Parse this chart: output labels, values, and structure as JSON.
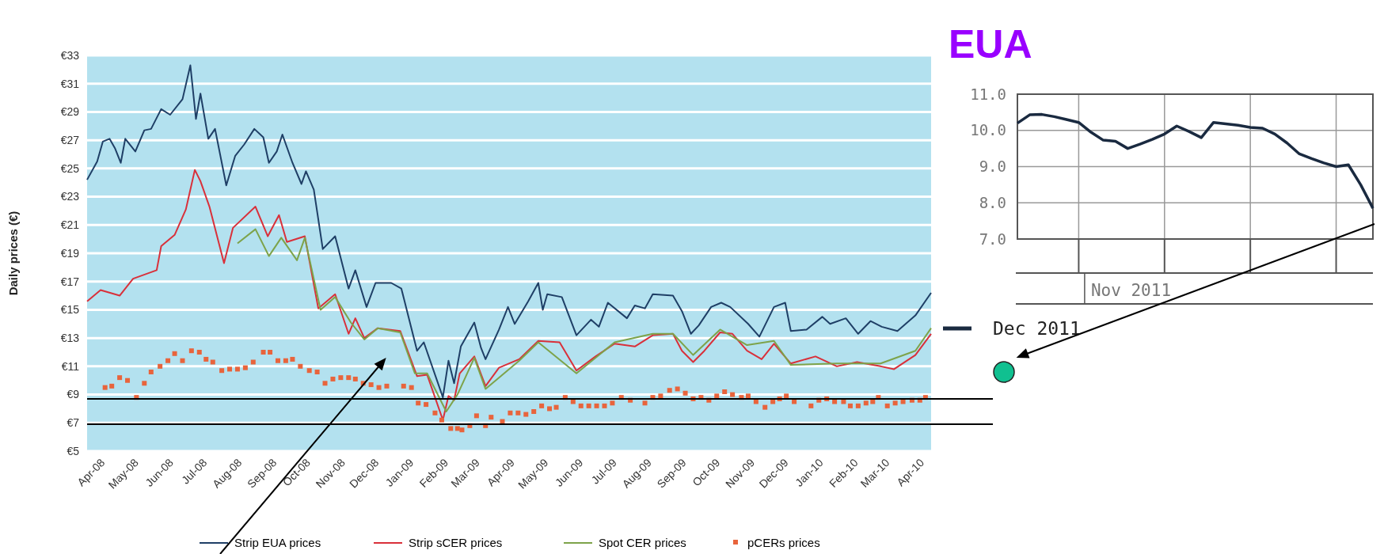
{
  "chart_data": [
    {
      "type": "line",
      "ylabel": "Daily prices (€)",
      "xlim": [
        "2008-04-01",
        "2010-04-23"
      ],
      "ylim": [
        5,
        33
      ],
      "yticks": [
        {
          "value": 5,
          "label": "€5"
        },
        {
          "value": 7,
          "label": "€7"
        },
        {
          "value": 9,
          "label": "€9"
        },
        {
          "value": 11,
          "label": "€11"
        },
        {
          "value": 13,
          "label": "€13"
        },
        {
          "value": 15,
          "label": "€15"
        },
        {
          "value": 17,
          "label": "€17"
        },
        {
          "value": 19,
          "label": "€19"
        },
        {
          "value": 21,
          "label": "€21"
        },
        {
          "value": 23,
          "label": "€23"
        },
        {
          "value": 25,
          "label": "€25"
        },
        {
          "value": 27,
          "label": "€27"
        },
        {
          "value": 29,
          "label": "€29"
        },
        {
          "value": 31,
          "label": "€31"
        },
        {
          "value": 33,
          "label": "€33"
        }
      ],
      "xticks": [
        {
          "value": "2008-04-15",
          "label": "Apr-08"
        },
        {
          "value": "2008-05-15",
          "label": "May-08"
        },
        {
          "value": "2008-06-15",
          "label": "Jun-08"
        },
        {
          "value": "2008-07-15",
          "label": "Jul-08"
        },
        {
          "value": "2008-08-15",
          "label": "Aug-08"
        },
        {
          "value": "2008-09-15",
          "label": "Sep-08"
        },
        {
          "value": "2008-10-15",
          "label": "Oct-08"
        },
        {
          "value": "2008-11-15",
          "label": "Nov-08"
        },
        {
          "value": "2008-12-15",
          "label": "Dec-08"
        },
        {
          "value": "2009-01-15",
          "label": "Jan-09"
        },
        {
          "value": "2009-02-15",
          "label": "Feb-09"
        },
        {
          "value": "2009-03-15",
          "label": "Mar-09"
        },
        {
          "value": "2009-04-15",
          "label": "Apr-09"
        },
        {
          "value": "2009-05-15",
          "label": "May-09"
        },
        {
          "value": "2009-06-15",
          "label": "Jun-09"
        },
        {
          "value": "2009-07-15",
          "label": "Jul-09"
        },
        {
          "value": "2009-08-15",
          "label": "Aug-09"
        },
        {
          "value": "2009-09-15",
          "label": "Sep-09"
        },
        {
          "value": "2009-10-15",
          "label": "Oct-09"
        },
        {
          "value": "2009-11-15",
          "label": "Nov-09"
        },
        {
          "value": "2009-12-15",
          "label": "Dec-09"
        },
        {
          "value": "2010-01-15",
          "label": "Jan-10"
        },
        {
          "value": "2010-02-15",
          "label": "Feb-10"
        },
        {
          "value": "2010-03-15",
          "label": "Mar-10"
        },
        {
          "value": "2010-04-15",
          "label": "Apr-10"
        }
      ],
      "grid": "y",
      "legend": "bottom",
      "ref_lines": [
        {
          "axis": "y",
          "value": 8.7,
          "color": "#000000"
        },
        {
          "axis": "y",
          "value": 6.9,
          "color": "#000000"
        }
      ],
      "series": [
        {
          "name": "Strip EUA prices",
          "color": "#1f3f66",
          "x": [
            "2008-04-01",
            "2008-04-10",
            "2008-04-15",
            "2008-04-21",
            "2008-04-26",
            "2008-05-01",
            "2008-05-05",
            "2008-05-14",
            "2008-05-22",
            "2008-05-28",
            "2008-06-06",
            "2008-06-14",
            "2008-06-25",
            "2008-07-02",
            "2008-07-07",
            "2008-07-11",
            "2008-07-18",
            "2008-07-24",
            "2008-08-03",
            "2008-08-11",
            "2008-08-19",
            "2008-08-28",
            "2008-09-05",
            "2008-09-10",
            "2008-09-17",
            "2008-09-22",
            "2008-10-01",
            "2008-10-09",
            "2008-10-13",
            "2008-10-20",
            "2008-10-28",
            "2008-11-08",
            "2008-11-20",
            "2008-11-26",
            "2008-12-06",
            "2008-12-14",
            "2008-12-28",
            "2009-01-06",
            "2009-01-20",
            "2009-01-26",
            "2009-02-12",
            "2009-02-17",
            "2009-02-22",
            "2009-02-28",
            "2009-03-12",
            "2009-03-18",
            "2009-03-22",
            "2009-04-03",
            "2009-04-11",
            "2009-04-17",
            "2009-04-29",
            "2009-05-08",
            "2009-05-12",
            "2009-05-16",
            "2009-05-29",
            "2009-06-11",
            "2009-06-24",
            "2009-07-01",
            "2009-07-09",
            "2009-07-26",
            "2009-08-02",
            "2009-08-11",
            "2009-08-18",
            "2009-09-05",
            "2009-09-13",
            "2009-09-21",
            "2009-09-28",
            "2009-10-09",
            "2009-10-18",
            "2009-10-26",
            "2009-11-11",
            "2009-11-21",
            "2009-12-04",
            "2009-12-14",
            "2009-12-19",
            "2010-01-02",
            "2010-01-16",
            "2010-01-23",
            "2010-02-06",
            "2010-02-17",
            "2010-02-28",
            "2010-03-10",
            "2010-03-24",
            "2010-04-09",
            "2010-04-23"
          ],
          "values": [
            24.2,
            25.5,
            26.9,
            27.1,
            26.4,
            25.4,
            27.1,
            26.2,
            27.7,
            27.8,
            29.2,
            28.8,
            29.9,
            32.3,
            28.5,
            30.3,
            27.1,
            27.8,
            23.8,
            25.9,
            26.7,
            27.8,
            27.2,
            25.4,
            26.2,
            27.4,
            25.4,
            23.9,
            24.8,
            23.5,
            19.3,
            20.2,
            16.5,
            17.8,
            15.2,
            16.9,
            16.9,
            16.5,
            12.1,
            12.7,
            8.8,
            11.4,
            9.8,
            12.4,
            14.1,
            12.3,
            11.5,
            13.6,
            15.2,
            14.0,
            15.6,
            16.9,
            15.0,
            16.1,
            15.9,
            13.2,
            14.3,
            13.8,
            15.5,
            14.4,
            15.3,
            15.1,
            16.1,
            16.0,
            14.9,
            13.3,
            13.9,
            15.2,
            15.5,
            15.2,
            14.0,
            13.1,
            15.2,
            15.5,
            13.5,
            13.6,
            14.5,
            14.0,
            14.4,
            13.3,
            14.2,
            13.8,
            13.5,
            14.6,
            16.2
          ]
        },
        {
          "name": "Strip sCER prices",
          "color": "#d9303a",
          "x": [
            "2008-04-01",
            "2008-04-13",
            "2008-04-30",
            "2008-05-12",
            "2008-06-02",
            "2008-06-06",
            "2008-06-18",
            "2008-06-28",
            "2008-07-06",
            "2008-07-11",
            "2008-07-19",
            "2008-08-01",
            "2008-08-09",
            "2008-08-29",
            "2008-09-09",
            "2008-09-19",
            "2008-09-26",
            "2008-10-12",
            "2008-10-24",
            "2008-11-08",
            "2008-11-20",
            "2008-11-26",
            "2008-12-04",
            "2008-12-16",
            "2009-01-05",
            "2009-01-20",
            "2009-01-29",
            "2009-02-12",
            "2009-02-17",
            "2009-02-22",
            "2009-02-27",
            "2009-03-12",
            "2009-03-22",
            "2009-04-03",
            "2009-04-21",
            "2009-05-08",
            "2009-05-27",
            "2009-06-11",
            "2009-06-28",
            "2009-07-15",
            "2009-08-02",
            "2009-08-18",
            "2009-09-05",
            "2009-09-13",
            "2009-09-23",
            "2009-10-03",
            "2009-10-17",
            "2009-10-28",
            "2009-11-10",
            "2009-11-23",
            "2009-12-04",
            "2009-12-19",
            "2010-01-10",
            "2010-01-29",
            "2010-02-16",
            "2010-03-09",
            "2010-03-21",
            "2010-04-09",
            "2010-04-23"
          ],
          "values": [
            15.6,
            16.4,
            16.0,
            17.2,
            17.8,
            19.5,
            20.3,
            22.1,
            24.9,
            24.1,
            22.3,
            18.3,
            20.8,
            22.3,
            20.2,
            21.7,
            19.8,
            20.2,
            15.1,
            16.1,
            13.3,
            14.4,
            13.0,
            13.7,
            13.5,
            10.3,
            10.4,
            7.2,
            8.9,
            8.6,
            10.5,
            11.7,
            9.6,
            10.9,
            11.5,
            12.8,
            12.7,
            10.7,
            11.7,
            12.6,
            12.4,
            13.2,
            13.3,
            12.1,
            11.3,
            12.1,
            13.4,
            13.3,
            12.1,
            11.5,
            12.6,
            11.2,
            11.7,
            11.0,
            11.3,
            11.0,
            10.8,
            11.8,
            13.3
          ]
        },
        {
          "name": "Spot CER prices",
          "color": "#7da34a",
          "x": [
            "2008-08-13",
            "2008-08-29",
            "2008-09-10",
            "2008-09-21",
            "2008-10-05",
            "2008-10-12",
            "2008-10-26",
            "2008-11-08",
            "2008-11-22",
            "2008-12-04",
            "2008-12-16",
            "2009-01-05",
            "2009-01-18",
            "2009-01-29",
            "2009-02-15",
            "2009-02-25",
            "2009-03-12",
            "2009-03-22",
            "2009-04-21",
            "2009-05-08",
            "2009-06-11",
            "2009-07-15",
            "2009-08-18",
            "2009-09-05",
            "2009-09-23",
            "2009-10-17",
            "2009-11-10",
            "2009-12-04",
            "2009-12-19",
            "2010-01-29",
            "2010-03-09",
            "2010-04-09",
            "2010-04-23"
          ],
          "values": [
            19.7,
            20.7,
            18.8,
            20.1,
            18.5,
            20.1,
            15.0,
            15.9,
            14.1,
            12.9,
            13.7,
            13.4,
            10.5,
            10.5,
            7.8,
            9.0,
            11.6,
            9.4,
            11.4,
            12.7,
            10.5,
            12.7,
            13.3,
            13.3,
            11.8,
            13.6,
            12.5,
            12.8,
            11.1,
            11.2,
            11.2,
            12.1,
            13.7
          ]
        },
        {
          "name": "pCERs prices",
          "type": "scatter",
          "marker": "square",
          "color": "#e8643c",
          "x": [
            "2008-04-17",
            "2008-04-23",
            "2008-04-30",
            "2008-05-07",
            "2008-05-15",
            "2008-05-22",
            "2008-05-28",
            "2008-06-05",
            "2008-06-12",
            "2008-06-18",
            "2008-06-25",
            "2008-07-03",
            "2008-07-10",
            "2008-07-16",
            "2008-07-22",
            "2008-07-30",
            "2008-08-06",
            "2008-08-13",
            "2008-08-20",
            "2008-08-27",
            "2008-09-05",
            "2008-09-11",
            "2008-09-18",
            "2008-09-25",
            "2008-10-01",
            "2008-10-08",
            "2008-10-16",
            "2008-10-23",
            "2008-10-30",
            "2008-11-06",
            "2008-11-13",
            "2008-11-20",
            "2008-11-26",
            "2008-12-03",
            "2008-12-10",
            "2008-12-17",
            "2008-12-24",
            "2009-01-08",
            "2009-01-15",
            "2009-01-21",
            "2009-01-28",
            "2009-02-05",
            "2009-02-11",
            "2009-02-19",
            "2009-02-25",
            "2009-03-01",
            "2009-03-08",
            "2009-03-14",
            "2009-03-22",
            "2009-03-27",
            "2009-04-06",
            "2009-04-13",
            "2009-04-20",
            "2009-04-27",
            "2009-05-04",
            "2009-05-11",
            "2009-05-18",
            "2009-05-24",
            "2009-06-01",
            "2009-06-08",
            "2009-06-15",
            "2009-06-22",
            "2009-06-29",
            "2009-07-06",
            "2009-07-13",
            "2009-07-21",
            "2009-07-29",
            "2009-08-11",
            "2009-08-18",
            "2009-08-25",
            "2009-09-02",
            "2009-09-09",
            "2009-09-16",
            "2009-09-23",
            "2009-09-30",
            "2009-10-07",
            "2009-10-14",
            "2009-10-21",
            "2009-10-28",
            "2009-11-05",
            "2009-11-11",
            "2009-11-18",
            "2009-11-26",
            "2009-12-03",
            "2009-12-09",
            "2009-12-15",
            "2009-12-22",
            "2010-01-06",
            "2010-01-13",
            "2010-01-20",
            "2010-01-27",
            "2010-02-04",
            "2010-02-10",
            "2010-02-17",
            "2010-02-24",
            "2010-03-02",
            "2010-03-07",
            "2010-03-15",
            "2010-03-22",
            "2010-03-29",
            "2010-04-06",
            "2010-04-13",
            "2010-04-18"
          ],
          "values": [
            9.5,
            9.6,
            10.2,
            10.0,
            8.8,
            9.8,
            10.6,
            11.0,
            11.4,
            11.9,
            11.4,
            12.1,
            12.0,
            11.5,
            11.3,
            10.7,
            10.8,
            10.8,
            10.9,
            11.3,
            12.0,
            12.0,
            11.4,
            11.4,
            11.5,
            11.0,
            10.7,
            10.6,
            9.8,
            10.1,
            10.2,
            10.2,
            10.1,
            9.8,
            9.7,
            9.5,
            9.6,
            9.6,
            9.5,
            8.4,
            8.3,
            7.7,
            7.2,
            6.6,
            6.6,
            6.5,
            6.8,
            7.5,
            6.8,
            7.4,
            7.1,
            7.7,
            7.7,
            7.6,
            7.8,
            8.2,
            8.0,
            8.1,
            8.8,
            8.5,
            8.2,
            8.2,
            8.2,
            8.2,
            8.4,
            8.8,
            8.6,
            8.4,
            8.8,
            8.9,
            9.3,
            9.4,
            9.1,
            8.7,
            8.8,
            8.6,
            8.9,
            9.2,
            9.0,
            8.8,
            8.9,
            8.5,
            8.1,
            8.5,
            8.7,
            8.9,
            8.5,
            8.2,
            8.6,
            8.7,
            8.5,
            8.5,
            8.2,
            8.2,
            8.4,
            8.5,
            8.8,
            8.2,
            8.4,
            8.5,
            8.6,
            8.6,
            8.8
          ]
        }
      ]
    },
    {
      "type": "line",
      "title": "EUA",
      "ylim": [
        7,
        11
      ],
      "annotations": [
        "Nov 2011"
      ],
      "categories": [
        null,
        null,
        null,
        null,
        null,
        null,
        null,
        null,
        null,
        null,
        null,
        null,
        null,
        null,
        null,
        null,
        null,
        null,
        null,
        null,
        null,
        null,
        null,
        null,
        null,
        null,
        null,
        null,
        null,
        null
      ],
      "yticks": [
        {
          "value": 7,
          "label": "7.0"
        },
        {
          "value": 8,
          "label": "8.0"
        },
        {
          "value": 9,
          "label": "9.0"
        },
        {
          "value": 10,
          "label": "10.0"
        },
        {
          "value": 11,
          "label": "11.0"
        }
      ],
      "grid": true,
      "legend": "bottom left",
      "series": [
        {
          "name": "Dec 2011",
          "color": "#1a2a40",
          "values": [
            10.2,
            10.43,
            10.44,
            10.38,
            10.3,
            10.22,
            9.95,
            9.73,
            9.7,
            9.5,
            9.62,
            9.75,
            9.9,
            10.12,
            9.97,
            9.8,
            10.22,
            10.18,
            10.14,
            10.08,
            10.06,
            9.9,
            9.65,
            9.35,
            9.22,
            9.1,
            9.0,
            9.05,
            8.5,
            7.85
          ]
        }
      ]
    }
  ]
}
